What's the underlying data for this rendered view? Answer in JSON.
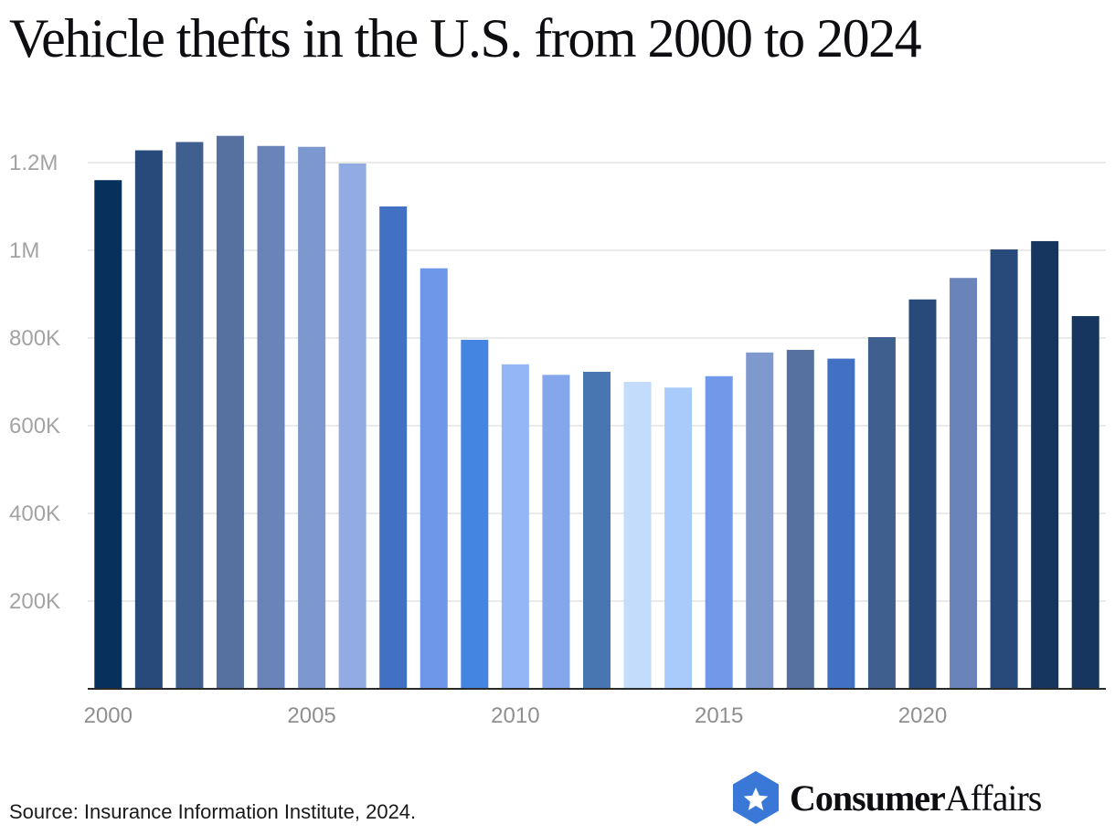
{
  "title": "Vehicle thefts in the U.S. from 2000 to 2024",
  "source": "Source: Insurance Information Institute, 2024.",
  "brand": {
    "part1": "Consumer",
    "part2": "Affairs",
    "icon": "star-hexagon-icon"
  },
  "chart_data": {
    "type": "bar",
    "title": "Vehicle thefts in the U.S. from 2000 to 2024",
    "xlabel": "",
    "ylabel": "",
    "ylim": [
      0,
      1300000
    ],
    "grid": true,
    "categories": [
      "2000",
      "2001",
      "2002",
      "2003",
      "2004",
      "2005",
      "2006",
      "2007",
      "2008",
      "2009",
      "2010",
      "2011",
      "2012",
      "2013",
      "2014",
      "2015",
      "2016",
      "2017",
      "2018",
      "2019",
      "2020",
      "2021",
      "2022",
      "2023",
      "2024"
    ],
    "values": [
      1160000,
      1228000,
      1247000,
      1261000,
      1238000,
      1236000,
      1198000,
      1100000,
      959000,
      796000,
      740000,
      716000,
      723000,
      700000,
      687000,
      713000,
      767000,
      773000,
      753000,
      802000,
      888000,
      937000,
      1002000,
      1021000,
      850000
    ],
    "colors": [
      "#07305c",
      "#284a7a",
      "#3f5f8f",
      "#56719f",
      "#6a84ba",
      "#7d98cf",
      "#92abe2",
      "#4271c4",
      "#6e97e9",
      "#4485e2",
      "#93b6f6",
      "#84a7ec",
      "#4776b1",
      "#c3dcfc",
      "#a8cbfc",
      "#7298e9",
      "#7f98cd",
      "#56719f",
      "#4271c4",
      "#3f5f8f",
      "#284a7a",
      "#6a84ba",
      "#284a7a",
      "#17365f",
      "#17365f"
    ],
    "yticks": [
      {
        "value": 200000,
        "label": "200K"
      },
      {
        "value": 400000,
        "label": "400K"
      },
      {
        "value": 600000,
        "label": "600K"
      },
      {
        "value": 800000,
        "label": "800K"
      },
      {
        "value": 1000000,
        "label": "1M"
      },
      {
        "value": 1200000,
        "label": "1.2M"
      }
    ],
    "xticks": [
      "2000",
      "2005",
      "2010",
      "2015",
      "2020"
    ]
  }
}
